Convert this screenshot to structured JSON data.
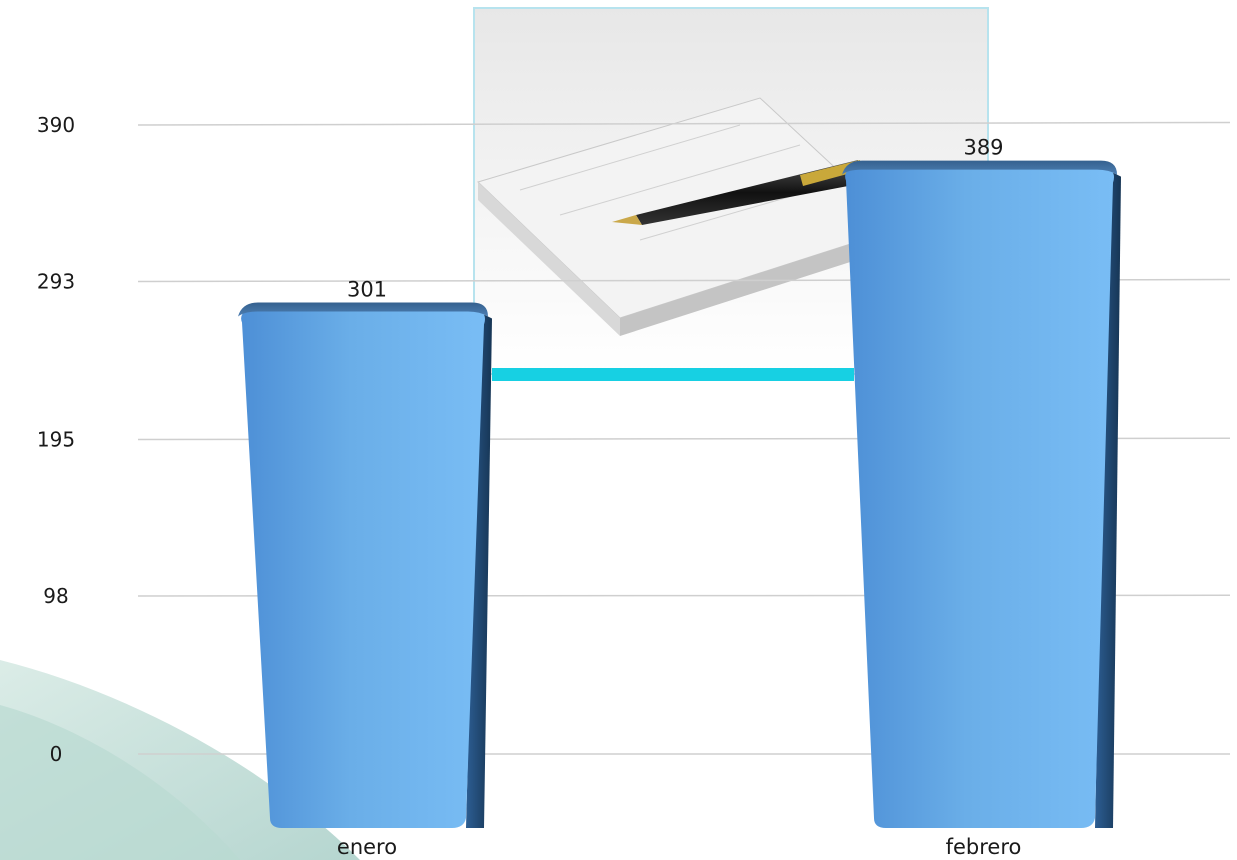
{
  "chart_data": {
    "type": "bar",
    "categories": [
      "enero",
      "febrero"
    ],
    "values": [
      301,
      389
    ],
    "ytick_labels": [
      "390",
      "293",
      "195",
      "98",
      "0"
    ],
    "ytick_values": [
      390,
      293,
      195,
      98,
      0
    ],
    "ylim": [
      0,
      390
    ],
    "grid": true,
    "bar_color": "#6aaee8"
  },
  "decor": {
    "picture": "checkbook-and-pen-photo",
    "accent_color": "#17d0e3"
  }
}
